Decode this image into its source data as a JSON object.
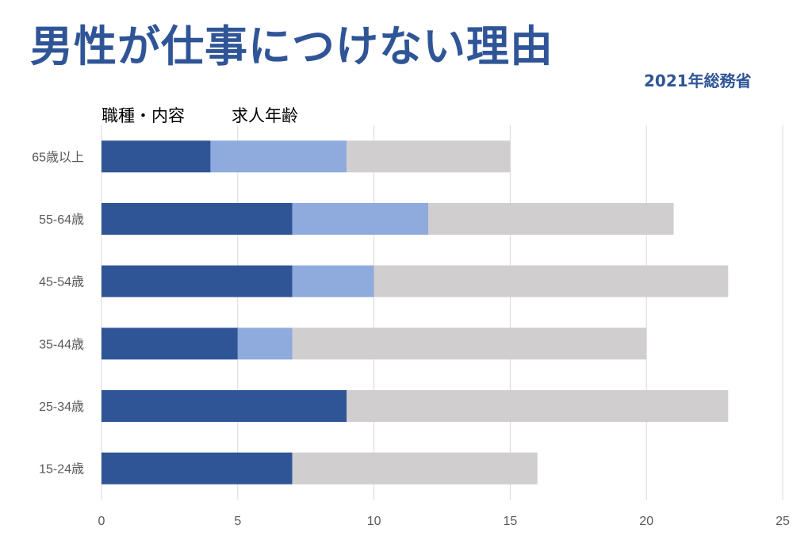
{
  "header": {
    "title": "男性が仕事につけない理由",
    "subtitle": "2021年総務省"
  },
  "legend": {
    "items": [
      "職種・内容",
      "求人年齢"
    ]
  },
  "colors": {
    "title": "#2f5597",
    "series_dark": "#2f5597",
    "series_light": "#8faadc",
    "series_gray": "#d0cece",
    "grid": "#d9d9d9",
    "tick": "#595959"
  },
  "chart_data": {
    "type": "bar",
    "orientation": "horizontal",
    "stacked": true,
    "title": "男性が仕事につけない理由",
    "subtitle": "2021年総務省",
    "categories": [
      "65歳以上",
      "55-64歳",
      "45-54歳",
      "35-44歳",
      "25-34歳",
      "15-24歳"
    ],
    "series": [
      {
        "name": "職種・内容",
        "color": "#2f5597",
        "values": [
          4,
          7,
          7,
          5,
          9,
          7
        ]
      },
      {
        "name": "求人年齢",
        "color": "#8faadc",
        "values": [
          5,
          5,
          3,
          2,
          0,
          0
        ]
      },
      {
        "color": "#d0cece",
        "values": [
          6,
          9,
          13,
          13,
          14,
          9
        ]
      }
    ],
    "xlim": [
      0,
      25
    ],
    "xticks": [
      0,
      5,
      10,
      15,
      20,
      25
    ],
    "grid": true,
    "legend_position": "top-left"
  }
}
